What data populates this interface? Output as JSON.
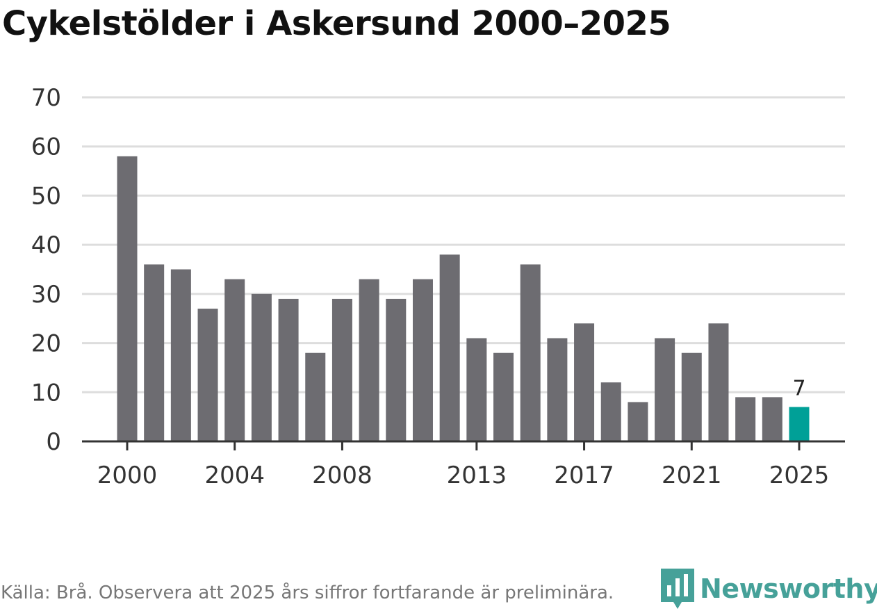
{
  "title": "Cykelstölder i Askersund 2000–2025",
  "source": "Källa: Brå. Observera att 2025 års siffror fortfarande är preliminära.",
  "brand": {
    "name": "Newsworthy",
    "icon": "newsworthy-logo-icon",
    "color": "#46a199"
  },
  "chart_data": {
    "type": "bar",
    "title": "Cykelstölder i Askersund 2000–2025",
    "xlabel": "",
    "ylabel": "",
    "categories": [
      "2000",
      "2001",
      "2002",
      "2003",
      "2004",
      "2005",
      "2006",
      "2007",
      "2008",
      "2009",
      "2010",
      "2011",
      "2012",
      "2013",
      "2014",
      "2015",
      "2016",
      "2017",
      "2018",
      "2019",
      "2020",
      "2021",
      "2022",
      "2023",
      "2024",
      "2025"
    ],
    "values": [
      58,
      36,
      35,
      27,
      33,
      30,
      29,
      18,
      29,
      33,
      29,
      33,
      38,
      21,
      18,
      36,
      21,
      24,
      12,
      8,
      21,
      18,
      24,
      9,
      9,
      7
    ],
    "ylim": [
      0,
      70
    ],
    "y_ticks": [
      "0",
      "10",
      "20",
      "30",
      "40",
      "50",
      "60",
      "70"
    ],
    "x_tick_labels": [
      "2000",
      "2004",
      "2008",
      "2013",
      "2017",
      "2021",
      "2025"
    ],
    "grid": true,
    "colors": {
      "bar": "#6d6c71",
      "highlight": "#00a097",
      "grid": "#dddddd",
      "axis": "#333333"
    },
    "highlight_index": 25,
    "data_labels": [
      {
        "index": 25,
        "text": "7"
      }
    ]
  }
}
